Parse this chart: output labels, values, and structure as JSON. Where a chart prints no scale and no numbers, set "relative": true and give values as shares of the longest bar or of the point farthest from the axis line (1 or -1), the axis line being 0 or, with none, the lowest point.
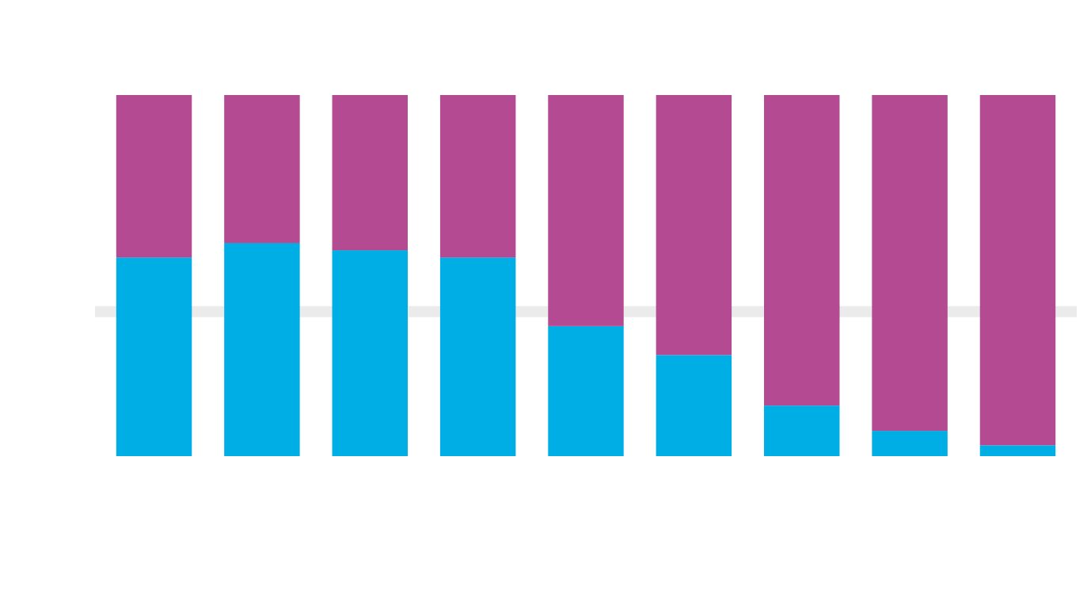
{
  "chart_data": {
    "type": "bar",
    "stacked": true,
    "relative": true,
    "categories": [
      null,
      null,
      null,
      null,
      null,
      null,
      null,
      null,
      null
    ],
    "series": [
      {
        "color": "#00aee6",
        "values": [
          0.55,
          0.59,
          0.57,
          0.55,
          0.36,
          0.28,
          0.14,
          0.07,
          0.03
        ]
      },
      {
        "color": "#b34a92",
        "values": [
          0.45,
          0.41,
          0.43,
          0.45,
          0.64,
          0.72,
          0.86,
          0.93,
          0.97
        ]
      }
    ],
    "ref_lines": [
      {
        "axis": "y",
        "value": 0.4,
        "color": "#ebebeb"
      }
    ]
  }
}
